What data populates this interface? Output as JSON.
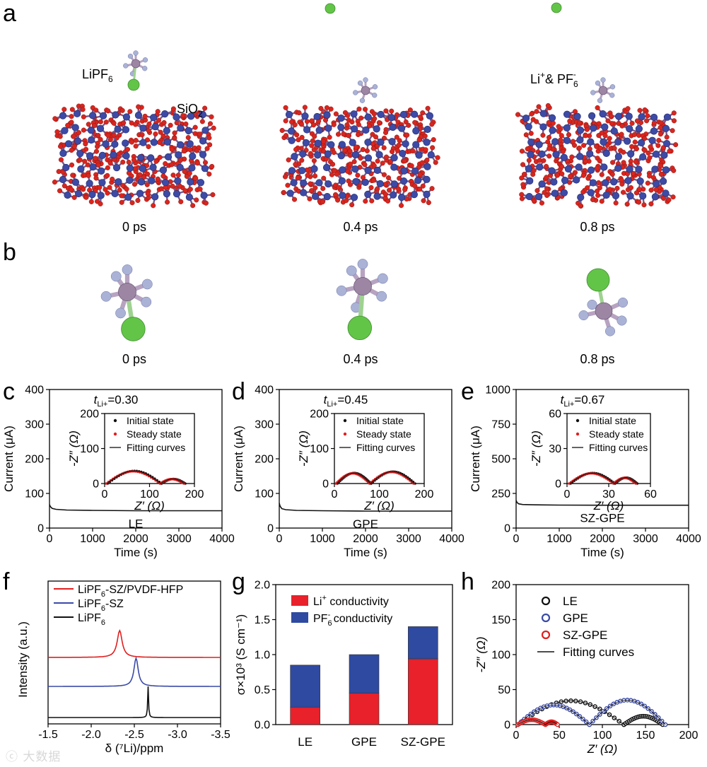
{
  "panel_labels": [
    "a",
    "b",
    "c",
    "d",
    "e",
    "f",
    "g",
    "h"
  ],
  "panel_a": {
    "times": [
      "0 ps",
      "0.4 ps",
      "0.8 ps"
    ],
    "label_lipf6": "LiPF",
    "label_lipf6_sub": "6",
    "label_sio2": "SiO",
    "label_sio2_sub": "2",
    "label_ions_1": "Li",
    "label_ions_sup": "+",
    "label_ions_2": "& PF",
    "label_ions_sub": "6",
    "label_ions_sup2": "-"
  },
  "panel_b": {
    "times": [
      "0 ps",
      "0.4 ps",
      "0.8 ps"
    ]
  },
  "colors": {
    "silicon": "#3d4ba6",
    "oxygen": "#d8261f",
    "phosphorus": "#9c86a4",
    "fluorine": "#aab2d6",
    "lithium": "#63c548",
    "red_series": "#e01f1f",
    "blue_series": "#3a4aa8",
    "black_series": "#111111",
    "bar_red": "#e8212a",
    "bar_blue": "#2e4aa1"
  },
  "chart_data": [
    {
      "panel": "c",
      "type": "line",
      "xlabel": "Time (s)",
      "ylabel": "Current (μA)",
      "xlim": [
        0,
        4000
      ],
      "ylim": [
        0,
        400
      ],
      "xticks": [
        0,
        1000,
        2000,
        3000,
        4000
      ],
      "yticks": [
        0,
        100,
        200,
        300,
        400
      ],
      "annotation": "t",
      "annotation_sub": "Li+",
      "annotation_val": "=0.30",
      "series_label": "LE",
      "x": [
        0,
        20,
        60,
        150,
        400,
        1000,
        2000,
        3000,
        4000
      ],
      "y": [
        68,
        62,
        57,
        54,
        52,
        51,
        50,
        50,
        50
      ],
      "inset": {
        "xlabel": "Z′ (Ω)",
        "ylabel": "-Z″ (Ω)",
        "xlim": [
          0,
          200
        ],
        "ylim": [
          0,
          200
        ],
        "xticks": [
          0,
          100,
          200
        ],
        "yticks": [
          0,
          100,
          200
        ],
        "legend": [
          "Initial state",
          "Steady state",
          "Fitting curves"
        ],
        "arcs": [
          [
            5,
            125,
            36
          ],
          [
            125,
            178,
            13
          ]
        ]
      }
    },
    {
      "panel": "d",
      "type": "line",
      "xlabel": "Time (s)",
      "ylabel": "Current (μA)",
      "xlim": [
        0,
        4000
      ],
      "ylim": [
        0,
        400
      ],
      "xticks": [
        0,
        1000,
        2000,
        3000,
        4000
      ],
      "yticks": [
        0,
        100,
        200,
        300,
        400
      ],
      "annotation": "t",
      "annotation_sub": "Li+",
      "annotation_val": "=0.45",
      "series_label": "GPE",
      "x": [
        0,
        20,
        60,
        150,
        400,
        1000,
        2000,
        3000,
        4000
      ],
      "y": [
        72,
        63,
        56,
        53,
        51,
        50,
        49,
        49,
        49
      ],
      "inset": {
        "xlabel": "Z′ (Ω)",
        "ylabel": "-Z″ (Ω)",
        "xlim": [
          0,
          200
        ],
        "ylim": [
          0,
          200
        ],
        "xticks": [
          0,
          100,
          200
        ],
        "yticks": [
          0,
          100,
          200
        ],
        "legend": [
          "Initial state",
          "Steady state",
          "Fitting curves"
        ],
        "arcs": [
          [
            5,
            80,
            30
          ],
          [
            80,
            178,
            34
          ]
        ]
      }
    },
    {
      "panel": "e",
      "type": "line",
      "xlabel": "Time (s)",
      "ylabel": "Current (μA)",
      "xlim": [
        0,
        4000
      ],
      "ylim": [
        0,
        1000
      ],
      "xticks": [
        0,
        1000,
        2000,
        3000,
        4000
      ],
      "yticks": [
        0,
        250,
        500,
        750,
        1000
      ],
      "annotation": "t",
      "annotation_sub": "Li+",
      "annotation_val": "=0.67",
      "series_label": "SZ-GPE",
      "x": [
        0,
        20,
        60,
        150,
        400,
        1000,
        2000,
        3000,
        4000
      ],
      "y": [
        200,
        185,
        175,
        170,
        168,
        166,
        165,
        165,
        165
      ],
      "inset": {
        "xlabel": "Z′ (Ω)",
        "ylabel": "-Z″ (Ω)",
        "xlim": [
          0,
          60
        ],
        "ylim": [
          0,
          60
        ],
        "xticks": [
          0,
          30,
          60
        ],
        "yticks": [
          0,
          30,
          60
        ],
        "legend": [
          "Initial state",
          "Steady state",
          "Fitting curves"
        ],
        "arcs": [
          [
            2,
            34,
            9
          ],
          [
            34,
            50,
            5
          ]
        ]
      }
    },
    {
      "panel": "f",
      "type": "line",
      "xlabel": "δ (⁷Li)/ppm",
      "ylabel": "Intensity (a.u.)",
      "xlim": [
        -1.5,
        -3.5
      ],
      "xticks": [
        -1.5,
        -2.0,
        -2.5,
        -3.0,
        -3.5
      ],
      "xtick_labels": [
        "-1.5",
        "-2.0",
        "-2.5",
        "-3.0",
        "-3.5"
      ],
      "series": [
        {
          "name": "LiPF6-SZ/PVDF-HFP",
          "legend": "LiPF",
          "legend_sub": "6",
          "legend_rest": "-SZ/PVDF-HFP",
          "peak": -2.33,
          "color": "#e01f1f"
        },
        {
          "name": "LiPF6-SZ",
          "legend": "LiPF",
          "legend_sub": "6",
          "legend_rest": "-SZ",
          "peak": -2.52,
          "color": "#3a4aa8"
        },
        {
          "name": "LiPF6",
          "legend": "LiPF",
          "legend_sub": "6",
          "legend_rest": "",
          "peak": -2.66,
          "color": "#111111"
        }
      ]
    },
    {
      "panel": "g",
      "type": "bar",
      "ylabel": "σ×10³ (S cm⁻¹)",
      "ylim": [
        0,
        2.0
      ],
      "yticks": [
        0.0,
        0.5,
        1.0,
        1.5,
        2.0
      ],
      "ytick_labels": [
        "0.0",
        "0.5",
        "1.0",
        "1.5",
        "2.0"
      ],
      "categories": [
        "LE",
        "GPE",
        "SZ-GPE"
      ],
      "series": [
        {
          "name": "Li+ conductivity",
          "legend": "Li",
          "legend_sup": "+",
          "legend_rest": " conductivity",
          "values": [
            0.25,
            0.45,
            0.94
          ]
        },
        {
          "name": "PF6- conductivity",
          "legend": "PF",
          "legend_sub": "6",
          "legend_sup": "-",
          "legend_rest": " conductivity",
          "values": [
            0.6,
            0.55,
            0.46
          ]
        }
      ]
    },
    {
      "panel": "h",
      "type": "scatter",
      "xlabel": "Z′ (Ω)",
      "ylabel": "-Z″ (Ω)",
      "xlim": [
        0,
        200
      ],
      "ylim": [
        0,
        200
      ],
      "xticks": [
        0,
        50,
        100,
        150,
        200
      ],
      "yticks": [
        0,
        50,
        100,
        150,
        200
      ],
      "legend": [
        "LE",
        "GPE",
        "SZ-GPE",
        "Fitting curves"
      ],
      "series": [
        {
          "name": "LE",
          "arcs": [
            [
              2,
              125,
              34
            ],
            [
              125,
              170,
              12
            ]
          ]
        },
        {
          "name": "GPE",
          "arcs": [
            [
              2,
              85,
              28
            ],
            [
              85,
              173,
              35
            ]
          ]
        },
        {
          "name": "SZ-GPE",
          "arcs": [
            [
              2,
              34,
              7
            ],
            [
              34,
              48,
              4
            ]
          ]
        }
      ]
    }
  ]
}
